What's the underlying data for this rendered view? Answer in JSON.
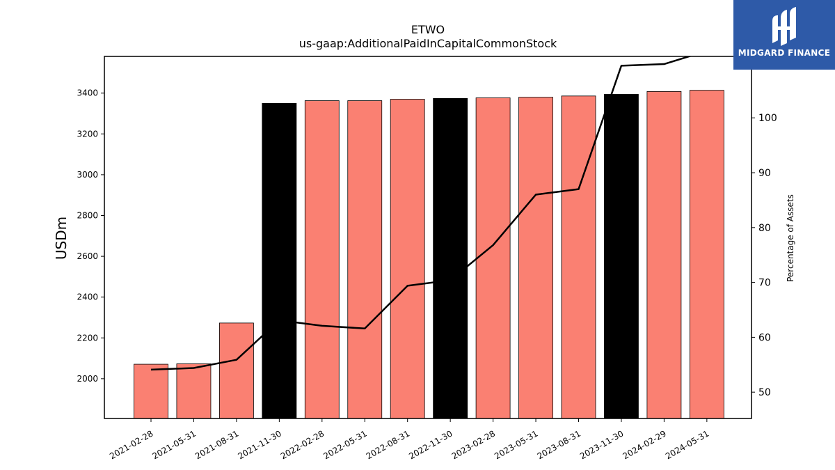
{
  "chart_data": {
    "type": "bar",
    "title": "ETWO",
    "subtitle": "us-gaap:AdditionalPaidInCapitalCommonStock",
    "ylabel": "USDm",
    "ylabel_right": "Percentage of Assets",
    "categories": [
      "2021-02-28",
      "2021-05-31",
      "2021-08-31",
      "2021-11-30",
      "2022-02-28",
      "2022-05-31",
      "2022-08-31",
      "2022-11-30",
      "2023-02-28",
      "2023-05-31",
      "2023-08-31",
      "2023-11-30",
      "2024-02-29",
      "2024-05-31"
    ],
    "series": [
      {
        "type": "bar",
        "values": [
          2071,
          2073,
          2273,
          3350,
          3363,
          3363,
          3370,
          3374,
          3377,
          3380,
          3386,
          3394,
          3408,
          3414
        ],
        "colors": [
          "#fa8072",
          "#fa8072",
          "#fa8072",
          "#000000",
          "#fa8072",
          "#fa8072",
          "#fa8072",
          "#000000",
          "#fa8072",
          "#fa8072",
          "#fa8072",
          "#000000",
          "#fa8072",
          "#fa8072"
        ]
      },
      {
        "type": "line",
        "axis": "right",
        "values": [
          54.1,
          54.4,
          55.9,
          63.1,
          62.1,
          61.6,
          69.4,
          70.4,
          76.8,
          86.0,
          87.0,
          109.5,
          109.8,
          112.2
        ],
        "color": "#000000"
      }
    ],
    "ylim": [
      1805,
      3580
    ],
    "ylim_right": [
      45.2,
      111.2
    ],
    "yticks": [
      2000,
      2200,
      2400,
      2600,
      2800,
      3000,
      3200,
      3400
    ],
    "yticks_right": [
      50,
      60,
      70,
      80,
      90,
      100
    ],
    "bar_edge_color": "#000000",
    "grid": false,
    "legend": "none"
  },
  "logo": {
    "text": "MIDGARD FINANCE",
    "background": "#2e5aa8"
  }
}
